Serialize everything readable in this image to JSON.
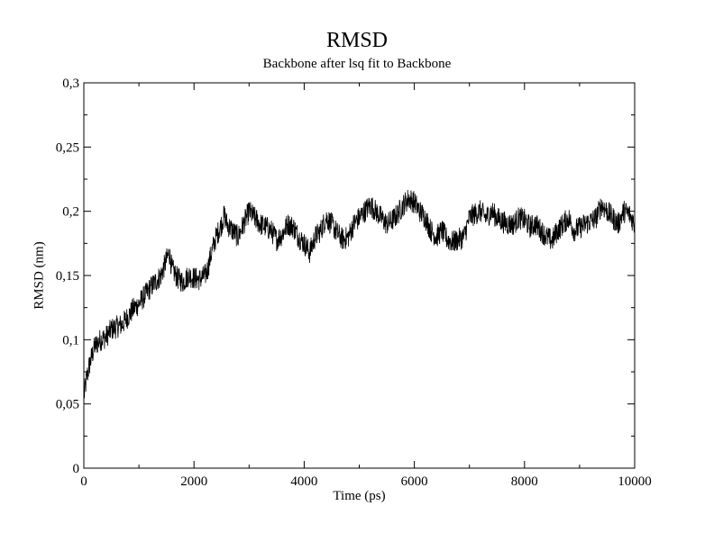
{
  "chart_data": {
    "type": "line",
    "title": "RMSD",
    "subtitle": "Backbone after lsq fit to Backbone",
    "xlabel": "Time (ps)",
    "ylabel": "RMSD (nm)",
    "xlim": [
      0,
      10000
    ],
    "ylim": [
      0,
      0.3
    ],
    "x_ticks": [
      0,
      2000,
      4000,
      6000,
      8000,
      10000
    ],
    "x_tick_labels": [
      "0",
      "2000",
      "4000",
      "6000",
      "8000",
      "10000"
    ],
    "y_ticks": [
      0,
      0.05,
      0.1,
      0.15,
      0.2,
      0.25,
      0.3
    ],
    "y_tick_labels": [
      "0",
      "0,05",
      "0,1",
      "0,15",
      "0,2",
      "0,25",
      "0,3"
    ],
    "grid": false,
    "legend": "none",
    "series": [
      {
        "x": [
          0,
          50,
          100,
          150,
          200,
          300,
          400,
          500,
          600,
          700,
          800,
          900,
          1000,
          1100,
          1200,
          1300,
          1400,
          1500,
          1550,
          1600,
          1700,
          1800,
          1900,
          2000,
          2100,
          2200,
          2250,
          2300,
          2400,
          2500,
          2550,
          2600,
          2700,
          2800,
          2900,
          3000,
          3100,
          3200,
          3300,
          3400,
          3500,
          3600,
          3700,
          3800,
          3900,
          4000,
          4100,
          4200,
          4300,
          4400,
          4500,
          4600,
          4700,
          4800,
          4900,
          5000,
          5100,
          5200,
          5300,
          5400,
          5500,
          5600,
          5700,
          5800,
          5900,
          6000,
          6100,
          6200,
          6300,
          6400,
          6500,
          6600,
          6700,
          6800,
          6900,
          7000,
          7100,
          7200,
          7300,
          7400,
          7500,
          7600,
          7700,
          7800,
          7900,
          8000,
          8100,
          8200,
          8300,
          8400,
          8500,
          8600,
          8700,
          8800,
          8900,
          9000,
          9100,
          9200,
          9300,
          9400,
          9500,
          9600,
          9700,
          9800,
          9900,
          10000
        ],
        "y": [
          0.055,
          0.07,
          0.08,
          0.088,
          0.095,
          0.1,
          0.102,
          0.108,
          0.11,
          0.112,
          0.118,
          0.124,
          0.128,
          0.134,
          0.14,
          0.145,
          0.15,
          0.162,
          0.168,
          0.155,
          0.148,
          0.145,
          0.15,
          0.148,
          0.147,
          0.15,
          0.155,
          0.165,
          0.18,
          0.19,
          0.197,
          0.19,
          0.185,
          0.18,
          0.19,
          0.2,
          0.195,
          0.19,
          0.188,
          0.185,
          0.178,
          0.182,
          0.19,
          0.188,
          0.18,
          0.175,
          0.168,
          0.18,
          0.185,
          0.195,
          0.19,
          0.183,
          0.178,
          0.18,
          0.19,
          0.195,
          0.2,
          0.205,
          0.2,
          0.195,
          0.19,
          0.193,
          0.198,
          0.205,
          0.21,
          0.207,
          0.2,
          0.195,
          0.185,
          0.18,
          0.185,
          0.178,
          0.176,
          0.178,
          0.18,
          0.195,
          0.198,
          0.2,
          0.195,
          0.2,
          0.195,
          0.192,
          0.19,
          0.19,
          0.195,
          0.193,
          0.188,
          0.19,
          0.185,
          0.18,
          0.177,
          0.185,
          0.19,
          0.195,
          0.185,
          0.187,
          0.19,
          0.192,
          0.195,
          0.205,
          0.2,
          0.195,
          0.19,
          0.2,
          0.198,
          0.19
        ]
      }
    ]
  }
}
